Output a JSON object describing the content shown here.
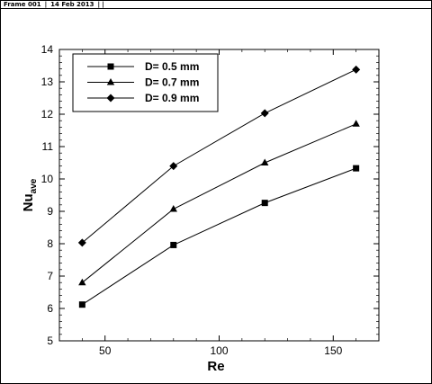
{
  "frame": {
    "title": "Frame 001",
    "date": "14 Feb 2013",
    "separator": "|"
  },
  "chart_data": {
    "type": "line",
    "title": "",
    "xlabel": "Re",
    "ylabel_main": "Nu",
    "ylabel_sub": "ave",
    "xlim": [
      30,
      170
    ],
    "ylim": [
      5,
      14
    ],
    "xticks": [
      50,
      100,
      150
    ],
    "yticks": [
      5,
      6,
      7,
      8,
      9,
      10,
      11,
      12,
      13,
      14
    ],
    "grid": false,
    "legend_position": "top-left",
    "x": [
      40,
      80,
      120,
      160
    ],
    "series": [
      {
        "name": "D= 0.5 mm",
        "marker": "square",
        "values": [
          6.12,
          7.96,
          9.26,
          10.33
        ]
      },
      {
        "name": "D= 0.7 mm",
        "marker": "triangle",
        "values": [
          6.8,
          9.07,
          10.5,
          11.7
        ]
      },
      {
        "name": "D= 0.9 mm",
        "marker": "diamond",
        "values": [
          8.03,
          10.4,
          12.03,
          13.38
        ]
      }
    ],
    "line_color": "#000000"
  }
}
